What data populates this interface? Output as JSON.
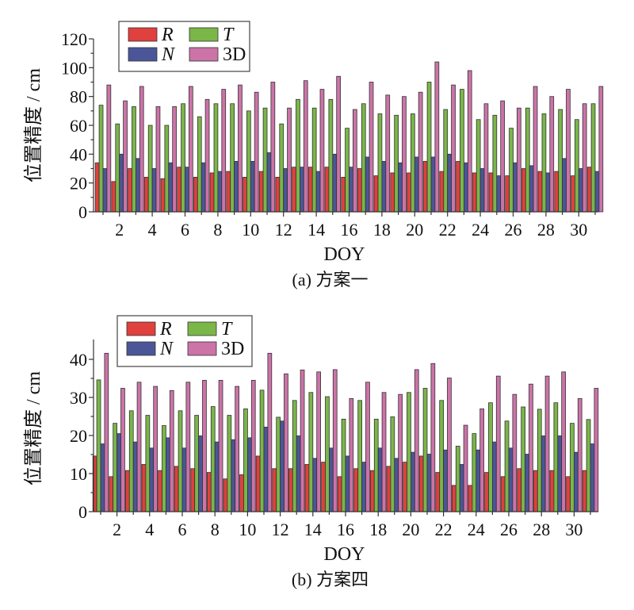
{
  "chart_data": [
    {
      "type": "bar",
      "panel": "a",
      "caption": "(a) 方案一",
      "title": "",
      "xlabel": "DOY",
      "ylabel": "位置精度 / cm",
      "ylim": [
        0,
        120
      ],
      "yticks": [
        0,
        20,
        40,
        60,
        80,
        100,
        120
      ],
      "xticks_labeled": [
        2,
        4,
        6,
        8,
        10,
        12,
        14,
        16,
        18,
        20,
        22,
        24,
        26,
        28,
        30
      ],
      "grid": false,
      "legend_position": "top-left",
      "categories": [
        1,
        2,
        3,
        4,
        5,
        6,
        7,
        8,
        9,
        10,
        11,
        12,
        13,
        14,
        15,
        16,
        17,
        18,
        19,
        20,
        21,
        22,
        23,
        24,
        25,
        26,
        27,
        28,
        29,
        30,
        31
      ],
      "series": [
        {
          "name": "R",
          "italic": true,
          "color": "#e0403e",
          "values": [
            34,
            21,
            30,
            24,
            23,
            31,
            24,
            27,
            28,
            24,
            28,
            24,
            31,
            31,
            31,
            24,
            30,
            25,
            27,
            27,
            35,
            28,
            35,
            27,
            27,
            25,
            30,
            28,
            28,
            25,
            31
          ]
        },
        {
          "name": "T",
          "italic": true,
          "color": "#7ab648",
          "values": [
            74,
            61,
            73,
            60,
            60,
            75,
            66,
            75,
            75,
            70,
            72,
            61,
            78,
            72,
            78,
            58,
            75,
            68,
            67,
            68,
            90,
            71,
            85,
            64,
            67,
            58,
            72,
            68,
            71,
            64,
            75
          ]
        },
        {
          "name": "N",
          "italic": true,
          "color": "#4a5698",
          "values": [
            30,
            40,
            37,
            30,
            34,
            31,
            34,
            28,
            35,
            35,
            41,
            30,
            31,
            28,
            40,
            31,
            38,
            35,
            34,
            38,
            38,
            40,
            34,
            30,
            25,
            34,
            32,
            27,
            37,
            30,
            28
          ]
        },
        {
          "name": "3D",
          "italic": false,
          "color": "#cc73a8",
          "values": [
            88,
            77,
            87,
            73,
            73,
            87,
            78,
            85,
            88,
            83,
            90,
            72,
            91,
            85,
            94,
            71,
            90,
            81,
            80,
            83,
            104,
            88,
            98,
            75,
            77,
            72,
            87,
            80,
            85,
            75,
            87
          ]
        }
      ]
    },
    {
      "type": "bar",
      "panel": "b",
      "caption": "(b) 方案四",
      "title": "",
      "xlabel": "DOY",
      "ylabel": "位置精度 / cm",
      "ylim": [
        0,
        45
      ],
      "yticks": [
        0,
        10,
        20,
        30,
        40
      ],
      "xticks_labeled": [
        2,
        4,
        6,
        8,
        10,
        12,
        14,
        16,
        18,
        20,
        22,
        24,
        26,
        28,
        30
      ],
      "grid": false,
      "legend_position": "top-left",
      "categories": [
        1,
        2,
        3,
        4,
        5,
        6,
        7,
        8,
        9,
        10,
        11,
        12,
        13,
        14,
        15,
        16,
        17,
        18,
        19,
        20,
        21,
        22,
        23,
        24,
        25,
        26,
        27,
        28,
        29,
        30,
        31
      ],
      "series": [
        {
          "name": "R",
          "italic": true,
          "color": "#e0403e",
          "values": [
            14.6,
            9.2,
            10.8,
            12.4,
            10.8,
            11.9,
            11.3,
            10.3,
            8.6,
            9.7,
            14.6,
            11.3,
            11.3,
            12.4,
            13.0,
            9.2,
            11.3,
            10.8,
            11.9,
            13.0,
            14.6,
            10.3,
            6.9,
            6.9,
            10.3,
            9.2,
            11.3,
            10.8,
            10.8,
            9.2,
            10.8
          ]
        },
        {
          "name": "T",
          "italic": true,
          "color": "#7ab648",
          "values": [
            34.6,
            23.2,
            26.5,
            25.3,
            22.6,
            26.5,
            25.3,
            27.6,
            25.3,
            27.0,
            31.9,
            24.8,
            29.2,
            31.3,
            30.2,
            24.3,
            29.2,
            24.3,
            24.9,
            31.3,
            32.4,
            29.2,
            17.2,
            20.5,
            28.6,
            23.8,
            27.5,
            26.9,
            28.6,
            23.2,
            24.2
          ]
        },
        {
          "name": "N",
          "italic": true,
          "color": "#4a5698",
          "values": [
            17.8,
            20.5,
            18.3,
            16.7,
            19.4,
            16.7,
            19.9,
            18.3,
            18.9,
            19.4,
            22.2,
            23.8,
            19.9,
            14.0,
            16.7,
            14.6,
            13.0,
            16.7,
            14.0,
            15.6,
            15.1,
            16.2,
            12.4,
            16.2,
            18.3,
            16.7,
            15.1,
            19.9,
            19.9,
            15.6,
            17.8
          ]
        },
        {
          "name": "3D",
          "italic": false,
          "color": "#cc73a8",
          "values": [
            41.6,
            32.4,
            34.0,
            32.9,
            31.8,
            34.0,
            34.5,
            34.5,
            32.9,
            34.5,
            41.6,
            36.2,
            37.2,
            36.7,
            37.3,
            29.7,
            34.0,
            31.3,
            30.8,
            37.3,
            38.9,
            35.1,
            22.7,
            27.0,
            35.6,
            30.8,
            33.5,
            35.6,
            36.7,
            29.7,
            32.4
          ]
        }
      ]
    }
  ]
}
